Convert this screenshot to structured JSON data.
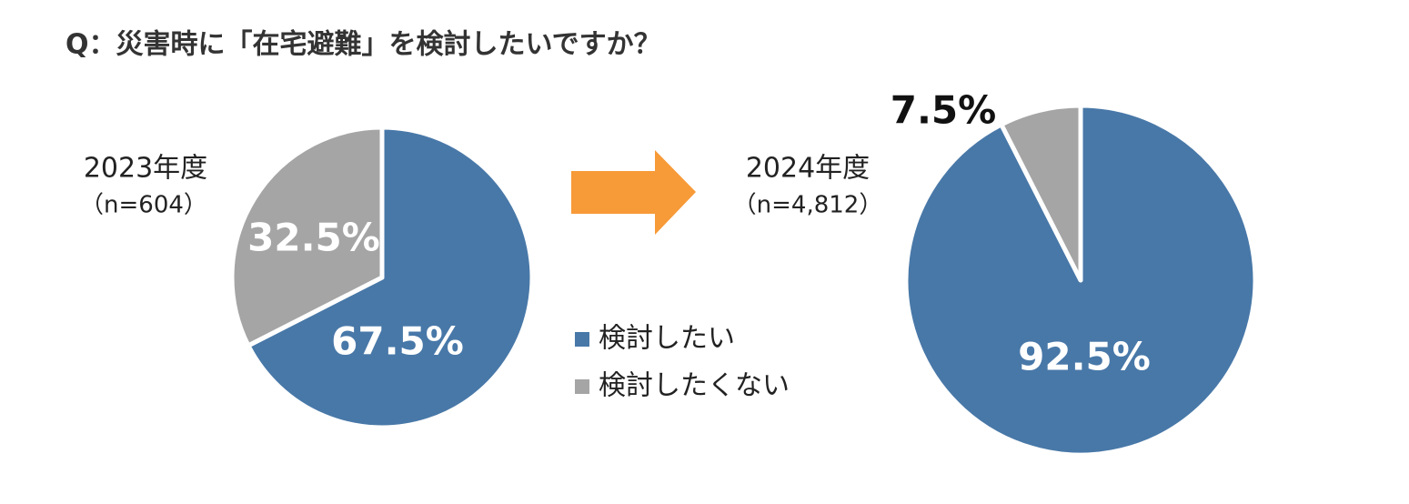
{
  "title": "Q：災害時に「在宅避難」を検討したいですか？",
  "chart_data": [
    {
      "type": "pie",
      "title": "2023年度",
      "subtitle": "（n=604）",
      "categories": [
        "検討したい",
        "検討したくない"
      ],
      "values": [
        67.5,
        32.5
      ],
      "value_labels": [
        "67.5%",
        "32.5%"
      ],
      "colors": [
        "#4878a8",
        "#a5a5a5"
      ]
    },
    {
      "type": "pie",
      "title": "2024年度",
      "subtitle": "（n=4,812）",
      "categories": [
        "検討したい",
        "検討したくない"
      ],
      "values": [
        92.5,
        7.5
      ],
      "value_labels": [
        "92.5%",
        "7.5%"
      ],
      "colors": [
        "#4878a8",
        "#a5a5a5"
      ]
    }
  ]
}
